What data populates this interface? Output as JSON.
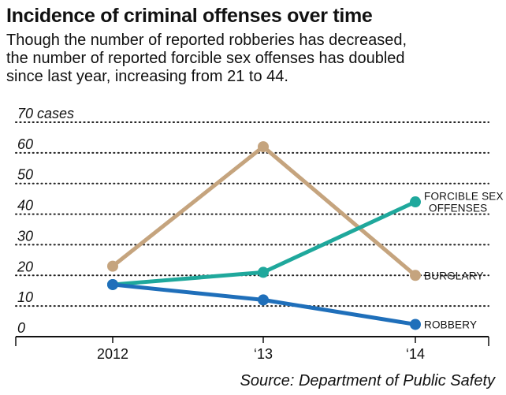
{
  "header": {
    "title": "Incidence of criminal offenses over time",
    "subtitle_lines": [
      "Though the number of reported robberies has decreased,",
      "the number of reported forcible sex offenses has doubled",
      "since last year, increasing from 21 to 44."
    ]
  },
  "footer": {
    "source": "Source: Department of Public Safety"
  },
  "chart_data": {
    "type": "line",
    "title": "Incidence of criminal offenses over time",
    "subtitle": "Though the number of reported robberies has decreased, the number of reported forcible sex offenses has doubled since last year, increasing from 21 to 44.",
    "categories": [
      "2012",
      "'13",
      "'14"
    ],
    "x_tick_labels": [
      "2012",
      "‘13",
      "‘14"
    ],
    "y_tick_labels": [
      "0",
      "10",
      "20",
      "30",
      "40",
      "50",
      "60",
      "70 cases"
    ],
    "y_ticks": [
      0,
      10,
      20,
      30,
      40,
      50,
      60,
      70
    ],
    "ylim": [
      0,
      70
    ],
    "ylabel": "",
    "xlabel": "",
    "grid": "dotted horizontal",
    "series": [
      {
        "name": "BURGLARY",
        "label_lines": [
          "BURGLARY"
        ],
        "color": "#c5a47e",
        "values": [
          23,
          62,
          20
        ]
      },
      {
        "name": "FORCIBLE SEX OFFENSES",
        "label_lines": [
          "FORCIBLE SEX",
          "OFFENSES"
        ],
        "color": "#1fa89c",
        "values": [
          17,
          21,
          44
        ]
      },
      {
        "name": "ROBBERY",
        "label_lines": [
          "ROBBERY"
        ],
        "color": "#1f6fba",
        "values": [
          17,
          12,
          4
        ]
      }
    ],
    "source": "Source: Department of Public Safety"
  }
}
